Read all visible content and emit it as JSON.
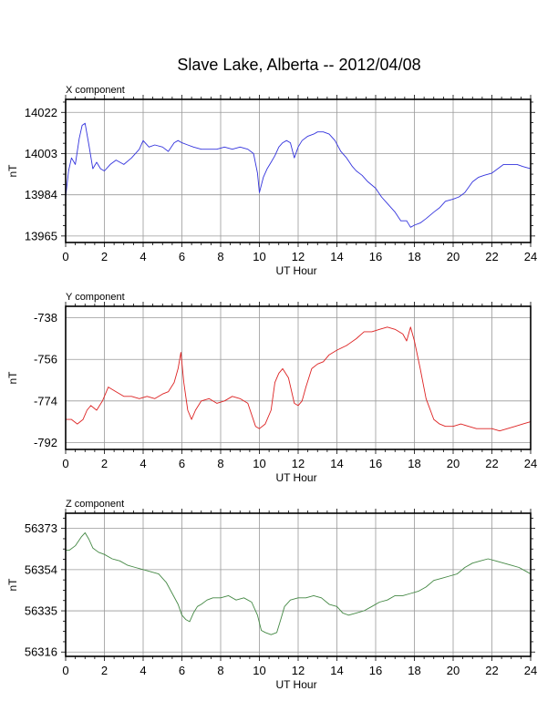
{
  "title": "Slave Lake, Alberta -- 2012/04/08",
  "chart_data": [
    {
      "type": "line",
      "panel_title": "X component",
      "xlabel": "UT Hour",
      "ylabel": "nT",
      "xlim": [
        0,
        24
      ],
      "x_ticks": [
        0,
        2,
        4,
        6,
        8,
        10,
        12,
        14,
        16,
        18,
        20,
        22,
        24
      ],
      "ylim": [
        13962,
        14028
      ],
      "y_ticks": [
        13965,
        13984,
        14003,
        14022
      ],
      "grid": true,
      "color": "#3333dd",
      "series": [
        {
          "x": [
            0,
            0.15,
            0.3,
            0.5,
            0.7,
            0.85,
            1.0,
            1.2,
            1.4,
            1.6,
            1.8,
            2.0,
            2.3,
            2.6,
            3.0,
            3.4,
            3.8,
            4.0,
            4.3,
            4.6,
            5.0,
            5.3,
            5.6,
            5.8,
            6.0,
            6.3,
            6.6,
            7.0,
            7.4,
            7.8,
            8.2,
            8.6,
            9.0,
            9.4,
            9.7,
            9.9,
            10.0,
            10.2,
            10.4,
            10.6,
            10.8,
            11.0,
            11.2,
            11.4,
            11.6,
            11.8,
            12.0,
            12.2,
            12.5,
            12.8,
            13.0,
            13.3,
            13.6,
            13.9,
            14.2,
            14.5,
            14.8,
            15.0,
            15.3,
            15.6,
            16.0,
            16.3,
            16.6,
            17.0,
            17.3,
            17.6,
            17.8,
            18.0,
            18.3,
            18.6,
            19.0,
            19.3,
            19.6,
            20.0,
            20.3,
            20.6,
            21.0,
            21.3,
            21.6,
            22.0,
            22.3,
            22.6,
            23.0,
            23.3,
            23.6,
            24.0
          ],
          "y": [
            13983,
            13995,
            14001,
            13998,
            14010,
            14016,
            14017,
            14007,
            13996,
            13999,
            13996,
            13995,
            13998,
            14000,
            13998,
            14001,
            14005,
            14009,
            14006,
            14007,
            14006,
            14004,
            14008,
            14009,
            14008,
            14007,
            14006,
            14005,
            14005,
            14005,
            14006,
            14005,
            14006,
            14005,
            14003,
            13994,
            13985,
            13992,
            13996,
            13999,
            14002,
            14006,
            14008,
            14009,
            14008,
            14001,
            14006,
            14009,
            14011,
            14012,
            14013,
            14013,
            14012,
            14009,
            14004,
            14001,
            13997,
            13995,
            13993,
            13990,
            13987,
            13983,
            13980,
            13976,
            13972,
            13972,
            13969,
            13970,
            13971,
            13973,
            13976,
            13978,
            13981,
            13982,
            13983,
            13985,
            13990,
            13992,
            13993,
            13994,
            13996,
            13998,
            13998,
            13998,
            13997,
            13996
          ]
        }
      ]
    },
    {
      "type": "line",
      "panel_title": "Y component",
      "xlabel": "UT Hour",
      "ylabel": "nT",
      "xlim": [
        0,
        24
      ],
      "x_ticks": [
        0,
        2,
        4,
        6,
        8,
        10,
        12,
        14,
        16,
        18,
        20,
        22,
        24
      ],
      "ylim": [
        -795,
        -733
      ],
      "y_ticks": [
        -738,
        -756,
        -774,
        -792
      ],
      "grid": true,
      "color": "#dd2222",
      "series": [
        {
          "x": [
            0,
            0.3,
            0.6,
            0.9,
            1.1,
            1.3,
            1.6,
            1.9,
            2.2,
            2.6,
            3.0,
            3.4,
            3.8,
            4.2,
            4.6,
            5.0,
            5.3,
            5.6,
            5.8,
            5.95,
            6.1,
            6.3,
            6.5,
            6.7,
            7.0,
            7.4,
            7.8,
            8.2,
            8.6,
            9.0,
            9.4,
            9.8,
            10.0,
            10.3,
            10.6,
            10.8,
            11.0,
            11.2,
            11.5,
            11.8,
            12.0,
            12.2,
            12.4,
            12.7,
            13.0,
            13.3,
            13.6,
            14.0,
            14.5,
            15.0,
            15.4,
            15.8,
            16.2,
            16.6,
            17.0,
            17.4,
            17.6,
            17.8,
            18.0,
            18.3,
            18.6,
            19.0,
            19.3,
            19.6,
            20.0,
            20.4,
            20.8,
            21.2,
            21.6,
            22.0,
            22.4,
            22.8,
            23.2,
            23.6,
            24.0
          ],
          "y": [
            -782,
            -782,
            -784,
            -782,
            -778,
            -776,
            -778,
            -774,
            -768,
            -770,
            -772,
            -772,
            -773,
            -772,
            -773,
            -771,
            -770,
            -766,
            -760,
            -753,
            -766,
            -778,
            -782,
            -778,
            -774,
            -773,
            -775,
            -774,
            -772,
            -773,
            -775,
            -785,
            -786,
            -784,
            -778,
            -766,
            -762,
            -760,
            -764,
            -775,
            -776,
            -774,
            -768,
            -760,
            -758,
            -757,
            -754,
            -752,
            -750,
            -747,
            -744,
            -744,
            -743,
            -742,
            -743,
            -745,
            -748,
            -742,
            -748,
            -760,
            -773,
            -782,
            -784,
            -785,
            -785,
            -784,
            -785,
            -786,
            -786,
            -786,
            -787,
            -786,
            -785,
            -784,
            -783
          ]
        }
      ]
    },
    {
      "type": "line",
      "panel_title": "Z component",
      "xlabel": "UT Hour",
      "ylabel": "nT",
      "xlim": [
        0,
        24
      ],
      "x_ticks": [
        0,
        2,
        4,
        6,
        8,
        10,
        12,
        14,
        16,
        18,
        20,
        22,
        24
      ],
      "ylim": [
        56314,
        56380
      ],
      "y_ticks": [
        56316,
        56335,
        56354,
        56373
      ],
      "grid": true,
      "color": "#448844",
      "series": [
        {
          "x": [
            0,
            0.2,
            0.5,
            0.8,
            1.0,
            1.2,
            1.4,
            1.7,
            2.0,
            2.4,
            2.8,
            3.2,
            3.6,
            4.0,
            4.4,
            4.8,
            5.2,
            5.5,
            5.8,
            6.0,
            6.2,
            6.4,
            6.6,
            6.8,
            7.0,
            7.3,
            7.6,
            8.0,
            8.4,
            8.8,
            9.2,
            9.6,
            9.9,
            10.1,
            10.3,
            10.6,
            10.9,
            11.1,
            11.3,
            11.6,
            12.0,
            12.4,
            12.8,
            13.2,
            13.6,
            14.0,
            14.3,
            14.6,
            15.0,
            15.4,
            15.8,
            16.2,
            16.6,
            17.0,
            17.4,
            17.8,
            18.2,
            18.6,
            19.0,
            19.4,
            19.8,
            20.2,
            20.6,
            21.0,
            21.4,
            21.8,
            22.2,
            22.6,
            23.0,
            23.4,
            23.8,
            24.0
          ],
          "y": [
            56363,
            56363,
            56365,
            56369,
            56371,
            56368,
            56364,
            56362,
            56361,
            56359,
            56358,
            56356,
            56355,
            56354,
            56353,
            56352,
            56348,
            56343,
            56338,
            56333,
            56331,
            56330,
            56334,
            56337,
            56338,
            56340,
            56341,
            56341,
            56342,
            56340,
            56341,
            56339,
            56333,
            56326,
            56325,
            56324,
            56325,
            56331,
            56337,
            56340,
            56341,
            56341,
            56342,
            56341,
            56338,
            56337,
            56334,
            56333,
            56334,
            56335,
            56337,
            56339,
            56340,
            56342,
            56342,
            56343,
            56344,
            56346,
            56349,
            56350,
            56351,
            56352,
            56355,
            56357,
            56358,
            56359,
            56358,
            56357,
            56356,
            56355,
            56353,
            56352
          ]
        }
      ]
    }
  ]
}
